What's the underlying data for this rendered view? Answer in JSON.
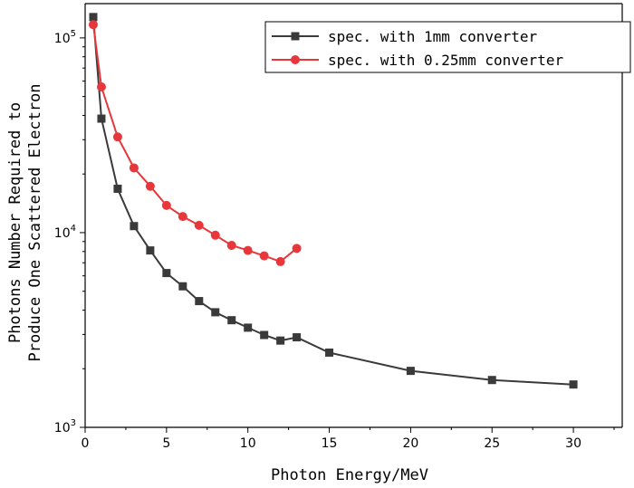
{
  "chart_data": {
    "type": "line",
    "title": "",
    "xlabel": "Photon Energy/MeV",
    "ylabel_lines": [
      "Photons Number Required to",
      "Produce One Scattered Electron"
    ],
    "xlim": [
      0,
      33
    ],
    "ylim": [
      1000,
      150000
    ],
    "yscale": "log",
    "grid": false,
    "legend_position": "top-right",
    "x_ticks": [
      0,
      5,
      10,
      15,
      20,
      25,
      30
    ],
    "x_tick_labels": [
      "0",
      "5",
      "10",
      "15",
      "20",
      "25",
      "30"
    ],
    "y_ticks": [
      1000,
      10000,
      100000
    ],
    "y_tick_base": "10",
    "y_tick_exponents": [
      "3",
      "4",
      "5"
    ],
    "series": [
      {
        "name": "spec. with 1mm converter",
        "color": "#3a3a3a",
        "marker": "square",
        "x": [
          0.5,
          1,
          2,
          3,
          4,
          5,
          6,
          7,
          8,
          9,
          10,
          11,
          12,
          13,
          15,
          20,
          25,
          30
        ],
        "values": [
          128000,
          38500,
          16800,
          10800,
          8100,
          6200,
          5300,
          4450,
          3900,
          3550,
          3250,
          2980,
          2790,
          2900,
          2420,
          1950,
          1750,
          1660
        ]
      },
      {
        "name": "spec. with 0.25mm converter",
        "color": "#e8373a",
        "marker": "circle",
        "x": [
          0.5,
          1,
          2,
          3,
          4,
          5,
          6,
          7,
          8,
          9,
          10,
          11,
          12,
          13
        ],
        "values": [
          117000,
          56000,
          31000,
          21500,
          17300,
          13800,
          12100,
          10900,
          9700,
          8600,
          8100,
          7600,
          7100,
          8300
        ]
      }
    ]
  }
}
